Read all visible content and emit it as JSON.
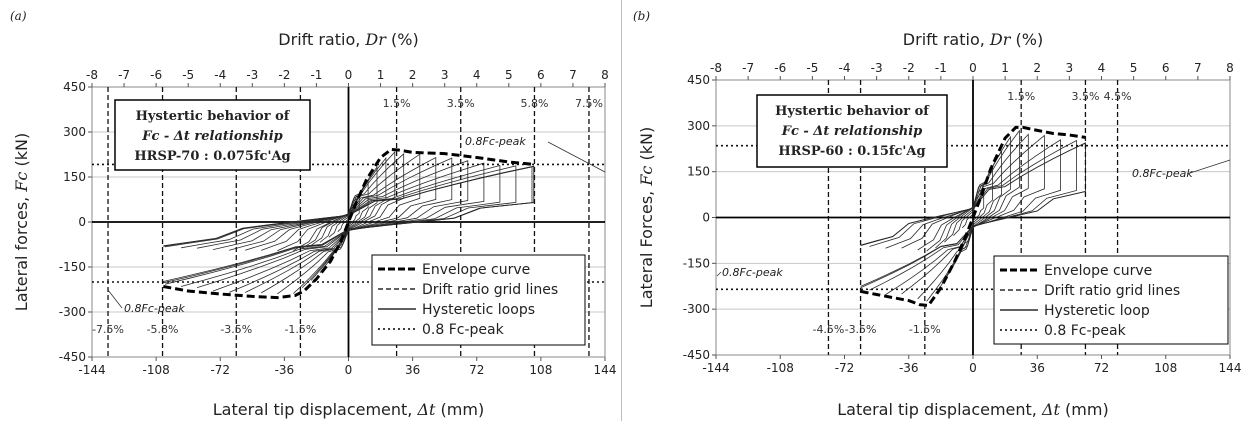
{
  "chart_data": [
    {
      "type": "line",
      "panel_label": "(a)",
      "top_axis_label": "Drift ratio, Dr (%)",
      "top_axis_main": "Drift ratio, ",
      "top_axis_symbol": "Dr",
      "top_axis_unit": "(%)",
      "xlabel_main": "Lateral tip displacement, ",
      "xlabel_symbol": "Δt",
      "xlabel_unit": "(mm)",
      "ylabel_main": "Lateral forces, ",
      "ylabel_symbol": "Fc",
      "ylabel_unit": "(kN)",
      "xlim": [
        -144,
        144
      ],
      "ylim": [
        -450,
        450
      ],
      "xticks": [
        -144,
        -108,
        -72,
        -36,
        0,
        36,
        72,
        108,
        144
      ],
      "yticks": [
        -450,
        -300,
        -150,
        0,
        150,
        300,
        450
      ],
      "top_ticks": [
        -8,
        -7,
        -6,
        -5,
        -4,
        -3,
        -2,
        -1,
        0,
        1,
        2,
        3,
        4,
        5,
        6,
        7,
        8
      ],
      "grid": "horizontal",
      "title_box": [
        "Hystertic behavior of",
        "Fc - Δt relationship",
        "HRSP-70 : 0.075fc'Ag"
      ],
      "drift_grid_lines": [
        {
          "x": -135,
          "label": "-7.5%"
        },
        {
          "x": -104.4,
          "label": "-5.8%"
        },
        {
          "x": -63,
          "label": "-3.5%"
        },
        {
          "x": -27,
          "label": "-1.5%"
        },
        {
          "x": 27,
          "label": "1.5%"
        },
        {
          "x": 63,
          "label": "3.5%"
        },
        {
          "x": 104.4,
          "label": "5.8%"
        },
        {
          "x": 135,
          "label": "7.5%"
        }
      ],
      "peak80_level": {
        "pos": 192,
        "neg": -200,
        "label_pos": "0.8Fc-peak",
        "label_neg": "0.8Fc-peak"
      },
      "envelope": {
        "x": [
          -104,
          -90,
          -72,
          -54,
          -40,
          -30,
          -25,
          -18,
          -10,
          -4,
          0,
          4,
          10,
          18,
          24,
          28,
          36,
          54,
          72,
          90,
          104
        ],
        "y": [
          -215,
          -230,
          -240,
          -248,
          -252,
          -245,
          -230,
          -190,
          -130,
          -60,
          0,
          60,
          140,
          215,
          242,
          240,
          232,
          228,
          215,
          200,
          192
        ]
      },
      "loops": [
        {
          "drift": 5.8,
          "pos_peak": [
            104,
            185
          ],
          "neg_peak": [
            -104,
            -180
          ]
        },
        {
          "drift": 7.5,
          "pos_peak": [
            135,
            120
          ],
          "neg_peak": [
            -135,
            -110
          ]
        }
      ],
      "legend": {
        "position": "bottom-right",
        "items": [
          {
            "label": "Envelope curve",
            "style": "thick-dashed"
          },
          {
            "label": "Drift ratio grid lines",
            "style": "dashed"
          },
          {
            "label": "Hysteretic loops",
            "style": "solid"
          },
          {
            "label": "0.8 Fc-peak",
            "style": "dotted"
          }
        ]
      }
    },
    {
      "type": "line",
      "panel_label": "(b)",
      "top_axis_label": "Drift ratio, Dr (%)",
      "top_axis_main": "Drift ratio, ",
      "top_axis_symbol": "Dr",
      "top_axis_unit": "(%)",
      "xlabel_main": "Lateral tip displacement, ",
      "xlabel_symbol": "Δt",
      "xlabel_unit": "(mm)",
      "ylabel_main": "Lateral Forces, ",
      "ylabel_symbol": "Fc",
      "ylabel_unit": "(kN)",
      "xlim": [
        -144,
        144
      ],
      "ylim": [
        -450,
        450
      ],
      "xticks": [
        -144,
        -108,
        -72,
        -36,
        0,
        36,
        72,
        108,
        144
      ],
      "yticks": [
        -450,
        -300,
        -150,
        0,
        150,
        300,
        450
      ],
      "top_ticks": [
        -8,
        -7,
        -6,
        -5,
        -4,
        -3,
        -2,
        -1,
        0,
        1,
        2,
        3,
        4,
        5,
        6,
        7,
        8
      ],
      "grid": "horizontal",
      "title_box": [
        "Hystertic behavior of",
        "Fc - Δt relationship",
        "HRSP-60 : 0.15fc'Ag"
      ],
      "drift_grid_lines": [
        {
          "x": -81,
          "label": "-4.5%"
        },
        {
          "x": -63,
          "label": "-3.5%"
        },
        {
          "x": -27,
          "label": "-1.5%"
        },
        {
          "x": 27,
          "label": "1.5%"
        },
        {
          "x": 63,
          "label": "3.5%"
        },
        {
          "x": 81,
          "label": "4.5%"
        }
      ],
      "peak80_level": {
        "pos": 235,
        "neg": -235,
        "label_pos": "0.8Fc-peak",
        "label_neg": "0.8Fc-peak"
      },
      "envelope": {
        "x": [
          -63,
          -54,
          -45,
          -36,
          -30,
          -25,
          -18,
          -10,
          -4,
          0,
          4,
          10,
          18,
          24,
          28,
          36,
          45,
          54,
          63
        ],
        "y": [
          -242,
          -252,
          -262,
          -272,
          -285,
          -288,
          -230,
          -140,
          -60,
          0,
          60,
          160,
          260,
          295,
          295,
          285,
          275,
          270,
          262
        ]
      },
      "loops": [
        {
          "drift": 3.5,
          "pos_peak": [
            63,
            240
          ],
          "neg_peak": [
            -63,
            -230
          ]
        },
        {
          "drift": 4.5,
          "pos_peak": [
            81,
            220
          ],
          "neg_peak": [
            -81,
            -220
          ]
        }
      ],
      "legend": {
        "position": "bottom-right",
        "items": [
          {
            "label": "Envelope curve",
            "style": "thick-dashed"
          },
          {
            "label": "Drift ratio grid lines",
            "style": "dashed"
          },
          {
            "label": "Hysteretic loop",
            "style": "solid"
          },
          {
            "label": "0.8 Fc-peak",
            "style": "dotted"
          }
        ]
      }
    }
  ]
}
